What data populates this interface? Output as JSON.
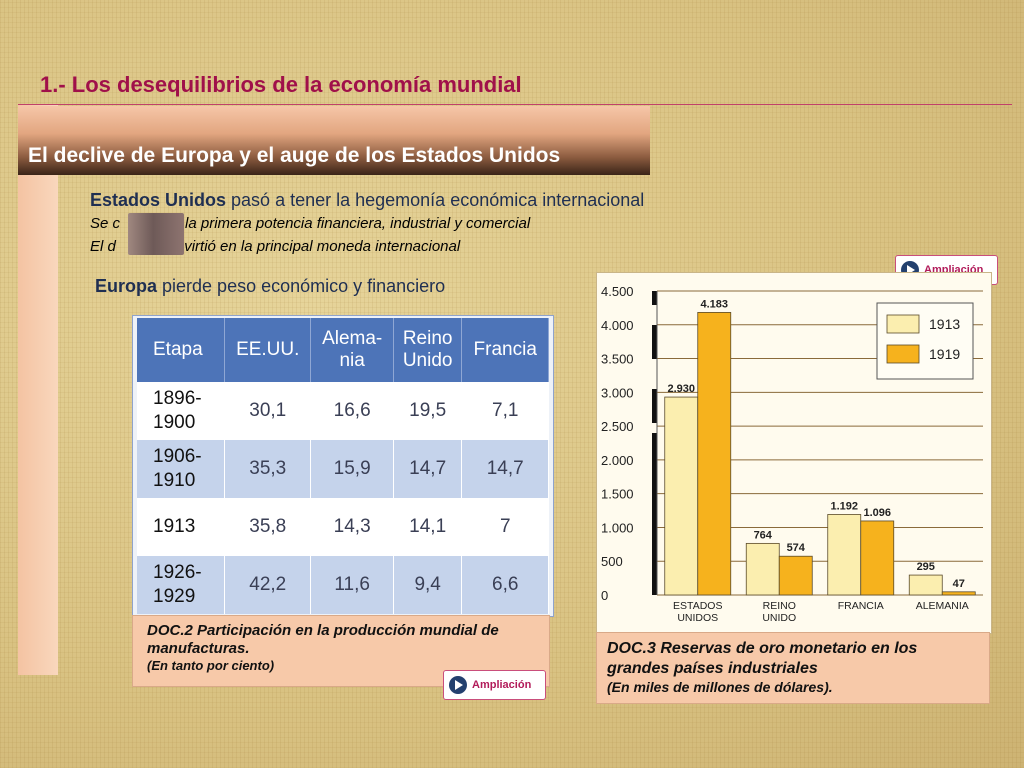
{
  "title": "1.- Los desequilibrios de la economía mundial",
  "banner": "El declive de Europa y el auge de los Estados Unidos",
  "text": {
    "line1_bold": "Estados Unidos",
    "line1_rest": " pasó a tener la hegemonía económica internacional",
    "line2_a": "Se c",
    "line2_b": " en la primera potencia financiera, industrial y comercial",
    "line3_a": "El d",
    "line3_b": " convirtió en la principal moneda internacional",
    "line4_bold": "Europa",
    "line4_rest": " pierde peso económico y financiero"
  },
  "buttons": {
    "ampliacion_top": "Ampliación",
    "ampliacion_bottom": "Ampliación"
  },
  "doc2": {
    "headers": [
      "Etapa",
      "EE.UU.",
      "Alema-\nnia",
      "Reino\nUnido",
      "Francia"
    ],
    "rows": [
      [
        "1896-\n1900",
        "30,1",
        "16,6",
        "19,5",
        "7,1"
      ],
      [
        "1906-\n1910",
        "35,3",
        "15,9",
        "14,7",
        "14,7"
      ],
      [
        "1913",
        "35,8",
        "14,3",
        "14,1",
        "7"
      ],
      [
        "1926-\n1929",
        "42,2",
        "11,6",
        "9,4",
        "6,6"
      ]
    ],
    "caption_title": "DOC.2  Participación en la producción mundial de manufacturas.",
    "caption_sub": "(En tanto por ciento)"
  },
  "doc3": {
    "caption_title": "DOC.3 Reservas de oro monetario en los grandes países industriales",
    "caption_sub": "(En miles de millones de dólares)."
  },
  "chart_data": {
    "type": "bar",
    "categories": [
      "ESTADOS\nUNIDOS",
      "REINO\nUNIDO",
      "FRANCIA",
      "ALEMANIA"
    ],
    "series": [
      {
        "name": "1913",
        "values": [
          2930,
          764,
          1192,
          295
        ],
        "labels": [
          "2.930",
          "764",
          "1.192",
          "295"
        ],
        "color": "#fbeeaf"
      },
      {
        "name": "1919",
        "values": [
          4183,
          574,
          1096,
          47
        ],
        "labels": [
          "4.183",
          "574",
          "1.096",
          "47"
        ],
        "color": "#f6b21d"
      }
    ],
    "yticks": [
      0,
      500,
      1000,
      1500,
      2000,
      2500,
      3000,
      3500,
      4000,
      4500
    ],
    "ytick_labels": [
      "0",
      "500",
      "1.000",
      "1.500",
      "2.000",
      "2.500",
      "3.000",
      "3.500",
      "4.000",
      "4.500"
    ],
    "ylim": [
      0,
      4500
    ],
    "grid": true,
    "legend_position": "top-right"
  },
  "colors": {
    "title": "#a0104a",
    "header_blue": "#4d74b8",
    "row_blue": "#c5d3eb",
    "bar_1913": "#fbeeaf",
    "bar_1919": "#f6b21d",
    "caption_bg": "#f7c9a9"
  },
  "icons": {
    "ampliacion": "play-icon"
  }
}
